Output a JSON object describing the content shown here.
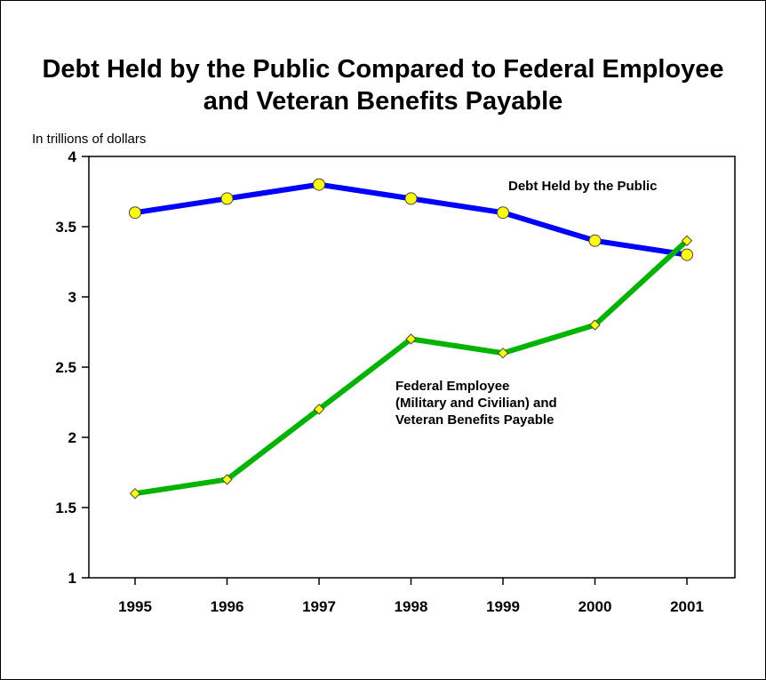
{
  "chart_data": {
    "type": "line",
    "title_lines": [
      "Debt Held by the Public Compared to Federal Employee",
      "and Veteran Benefits Payable"
    ],
    "unit_label": "In trillions of dollars",
    "categories": [
      "1995",
      "1996",
      "1997",
      "1998",
      "1999",
      "2000",
      "2001"
    ],
    "ylim": [
      1,
      4
    ],
    "yticks": [
      "1",
      "1.5",
      "2",
      "2.5",
      "3",
      "3.5",
      "4"
    ],
    "grid": false,
    "series": [
      {
        "key": "debt",
        "values": [
          3.6,
          3.7,
          3.8,
          3.7,
          3.6,
          3.4,
          3.3
        ],
        "line_color": "#0000ff",
        "marker": "circle",
        "marker_color": "#ffff00",
        "label_lines": [
          "Debt Held by the Public"
        ]
      },
      {
        "key": "benefits",
        "values": [
          1.6,
          1.7,
          2.2,
          2.7,
          2.6,
          2.8,
          3.4
        ],
        "line_color": "#00b400",
        "marker": "diamond",
        "marker_color": "#ffff00",
        "label_lines": [
          "Federal Employee",
          "(Military and Civilian) and",
          "Veteran Benefits Payable"
        ]
      }
    ]
  }
}
